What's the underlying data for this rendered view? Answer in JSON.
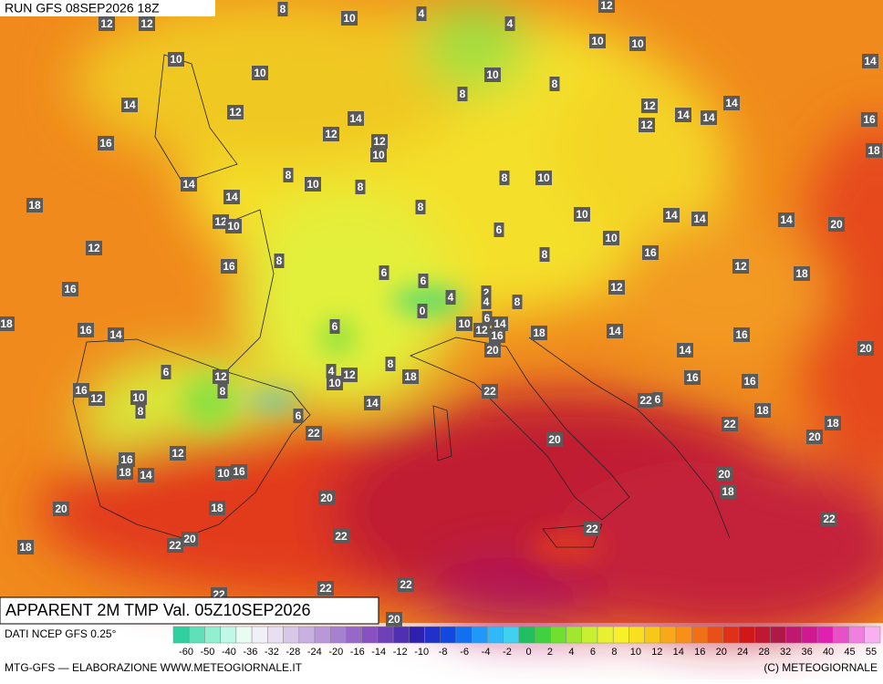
{
  "header": {
    "run": "RUN GFS 08SEP2026 18Z"
  },
  "title": "APPARENT 2M TMP Val. 05Z10SEP2026",
  "footer": {
    "source": "DATI NCEP GFS 0.25°",
    "credit": "MTG-GFS — ELABORAZIONE WWW.METEOGIORNALE.IT",
    "copyright": "(C) METEOGIORNALE"
  },
  "colorbar": {
    "ticks": [
      -60,
      -50,
      -40,
      -36,
      -32,
      -28,
      -24,
      -20,
      -16,
      -14,
      -12,
      -10,
      -8,
      -6,
      -4,
      -2,
      0,
      2,
      4,
      6,
      8,
      10,
      12,
      14,
      16,
      20,
      24,
      28,
      32,
      36,
      40,
      45,
      55
    ]
  },
  "map": {
    "labels": [
      12,
      12,
      10,
      8,
      4,
      4,
      12,
      10,
      10,
      14,
      10,
      10,
      10,
      8,
      8,
      14,
      12,
      14,
      12,
      12,
      10,
      12,
      12,
      14,
      14,
      14,
      16,
      18,
      16,
      8,
      10,
      8,
      8,
      10,
      14,
      14,
      18,
      8,
      10,
      14,
      14,
      14,
      20,
      12,
      10,
      6,
      10,
      12,
      8,
      8,
      16,
      12,
      18,
      16,
      6,
      6,
      16,
      12,
      4,
      2,
      4,
      8,
      0,
      18,
      16,
      14,
      10,
      6,
      12,
      6,
      14,
      16,
      18,
      14,
      16,
      20,
      14,
      20,
      6,
      12,
      4,
      12,
      8,
      10,
      18,
      16,
      16,
      16,
      12,
      10,
      8,
      8,
      14,
      22,
      22,
      6,
      6,
      18,
      22,
      18,
      22,
      20,
      20,
      16,
      12,
      18,
      14,
      10,
      16,
      20,
      18,
      20,
      20,
      18,
      22,
      22,
      22,
      20,
      22,
      18,
      22,
      22,
      22,
      20
    ]
  }
}
